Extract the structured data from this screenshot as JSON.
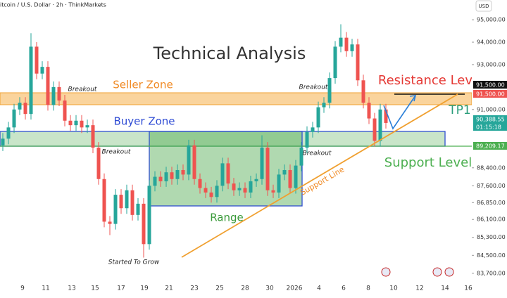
{
  "chart_data": {
    "type": "candlestick",
    "header": "itcoin / U.S. Dollar · 2h · ThinkMarkets",
    "currency": "USD",
    "title": "Technical Analysis",
    "up_color": "#26a69a",
    "down_color": "#ef5350",
    "ylim": [
      83350,
      95880
    ],
    "yticks": [
      {
        "value": 95000,
        "label": "95,000.00"
      },
      {
        "value": 94000,
        "label": "94,000.00"
      },
      {
        "value": 93000,
        "label": "93,000.00"
      },
      {
        "value": 91000,
        "label": "91,000.00"
      },
      {
        "value": 88400,
        "label": "88,400.00"
      },
      {
        "value": 87600,
        "label": "87,600.00"
      },
      {
        "value": 86850,
        "label": "86,850.00"
      },
      {
        "value": 86100,
        "label": "86,100.00"
      },
      {
        "value": 85300,
        "label": "85,300.00"
      },
      {
        "value": 84500,
        "label": "84,500.00"
      },
      {
        "value": 83700,
        "label": "83,700.00"
      }
    ],
    "xtick_labels": [
      "9",
      "11",
      "13",
      "15",
      "17",
      "19",
      "21",
      "23",
      "25",
      "28",
      "30",
      "2026",
      "4",
      "6",
      "8",
      "10",
      "12",
      "14",
      "16"
    ],
    "price_labels": [
      {
        "value": 91500,
        "label": "91,500.00"
      },
      {
        "value": 91500,
        "label": "91,500.00"
      },
      {
        "value": 90388.55,
        "label": "90,388.55"
      },
      {
        "value": 89209.17,
        "label": "89,209.17"
      }
    ],
    "countdown": "01:15:18",
    "annotations": {
      "seller_zone": "Seller Zone",
      "buyer_zone": "Buyer Zone",
      "resistance": "Resistance Level",
      "tp1": "TP1",
      "support_level": "Support Level",
      "support_line": "Support Line",
      "range": "Range",
      "breakouts": [
        "Breakout",
        "Breakout",
        "Breakout",
        "Breakout"
      ],
      "started": "Started To Grow"
    },
    "open": [
      89400,
      89700,
      90200,
      91000,
      91300,
      90800,
      93800,
      92600,
      92900,
      91200,
      92000,
      91400,
      90500,
      90300,
      90500,
      90200,
      90300,
      89300,
      87900,
      86000,
      85900,
      87200,
      86600,
      87400,
      86300,
      86800,
      85000,
      87600,
      88000,
      87800,
      88200,
      87900,
      88300,
      88100,
      89400,
      87900,
      87500,
      87300,
      87100,
      87600,
      88600,
      87700,
      87400,
      87500,
      87300,
      87800,
      87900,
      89300,
      87400,
      87300,
      88100,
      88300,
      87500,
      88500,
      89300,
      90000,
      90200,
      91100,
      91300,
      92400,
      93800,
      94200,
      93600,
      93900,
      92300,
      91300,
      90600,
      89600,
      91000
    ],
    "high": [
      89950,
      90450,
      91250,
      91550,
      91550,
      94400,
      94000,
      93150,
      93150,
      92250,
      92250,
      91650,
      90750,
      90750,
      90750,
      90550,
      90550,
      89550,
      88150,
      86250,
      87450,
      87450,
      87650,
      87650,
      87050,
      87050,
      87850,
      88250,
      88250,
      88450,
      88450,
      88550,
      88550,
      89650,
      89650,
      88150,
      87750,
      87550,
      87850,
      88850,
      88850,
      87950,
      87750,
      87750,
      88050,
      88150,
      89850,
      89550,
      87650,
      88350,
      88550,
      88550,
      88750,
      89550,
      90250,
      90450,
      91350,
      91550,
      92650,
      94050,
      94800,
      94450,
      94150,
      94150,
      92550,
      91550,
      90850,
      91250,
      91250
    ],
    "low": [
      89150,
      89450,
      89950,
      90750,
      90550,
      90550,
      92350,
      92350,
      90950,
      90950,
      91150,
      90250,
      90050,
      90050,
      89950,
      89950,
      89050,
      87650,
      85750,
      85400,
      85650,
      86350,
      86350,
      86050,
      86050,
      84400,
      84750,
      87350,
      87550,
      87550,
      87650,
      87650,
      87850,
      87850,
      87650,
      87250,
      87050,
      86850,
      86850,
      87350,
      87450,
      87150,
      87150,
      87050,
      87050,
      87550,
      87650,
      87150,
      87050,
      87050,
      87850,
      87250,
      87250,
      88250,
      89050,
      89750,
      89950,
      90850,
      91050,
      92150,
      93550,
      93350,
      93350,
      92050,
      91050,
      90350,
      89350,
      89350,
      90150
    ],
    "close": [
      89700,
      90200,
      91000,
      91300,
      90800,
      93800,
      92600,
      92900,
      91200,
      92000,
      91400,
      90500,
      90300,
      90500,
      90200,
      90300,
      89300,
      87900,
      86000,
      85900,
      87200,
      86600,
      87400,
      86300,
      86800,
      85000,
      87600,
      88000,
      87800,
      88200,
      87900,
      88300,
      88100,
      89400,
      87900,
      87500,
      87300,
      87100,
      87600,
      88600,
      87700,
      87400,
      87500,
      87300,
      87800,
      87900,
      89300,
      87400,
      87300,
      88100,
      88300,
      87500,
      88500,
      89300,
      90000,
      90200,
      91100,
      91300,
      92400,
      93800,
      94200,
      93600,
      93900,
      92300,
      91300,
      90600,
      89600,
      91000,
      90400
    ]
  }
}
